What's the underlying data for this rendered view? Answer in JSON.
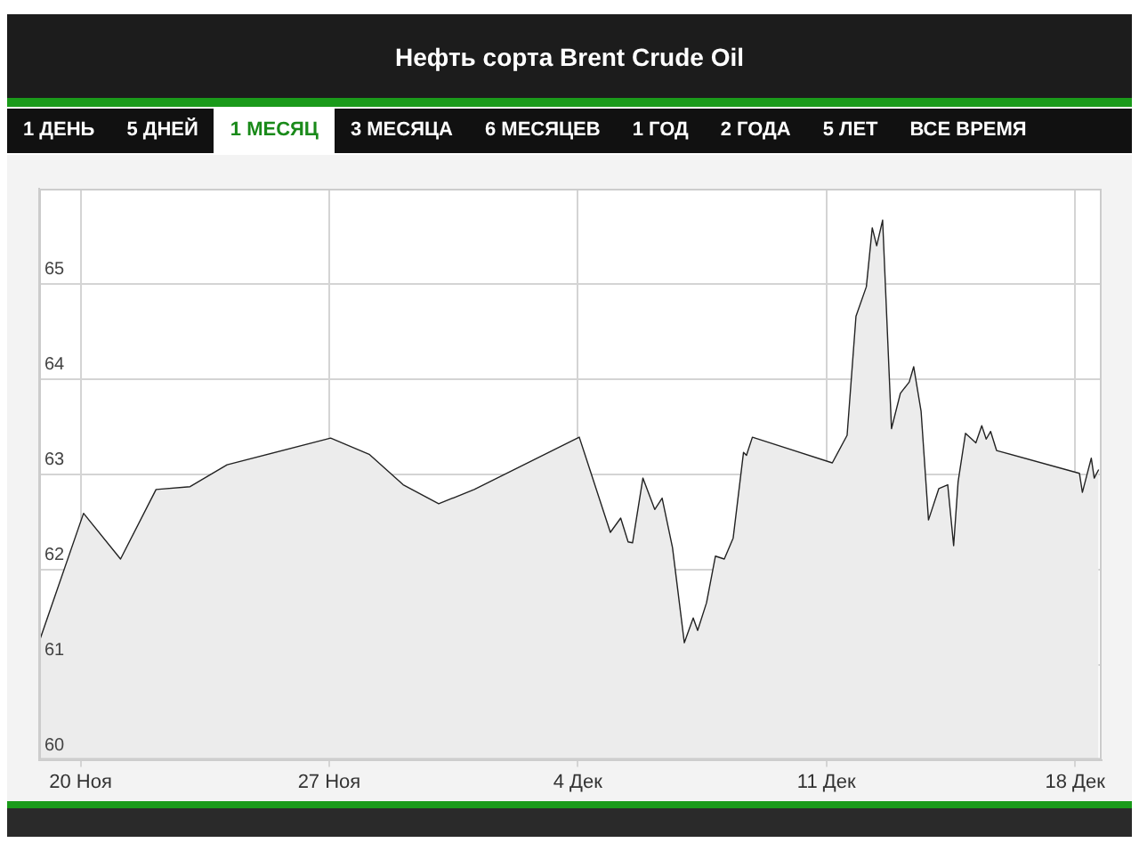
{
  "chart_data": {
    "type": "area",
    "title": "Нефть сорта Brent Crude Oil",
    "annotations": [
      "1 ДЕНЬ",
      "5 ДНЕЙ",
      "1 МЕСЯЦ",
      "3 МЕСЯЦА",
      "6 МЕСЯЦЕВ",
      "1 ГОД",
      "2 ГОДА",
      "5 ЛЕТ",
      "ВСЕ ВРЕМЯ"
    ],
    "x": [
      "--11-18T20:00",
      "--11-20T02:00",
      "--11-21T03:00",
      "--11-22T03:00",
      "--11-23T02:00",
      "--11-24T03:00",
      "--11-27T01:00",
      "--11-28T03:00",
      "--11-29T02:00",
      "--11-30T02:00",
      "--12-01T02:00",
      "--12-04T01:00",
      "--12-04T22:00",
      "--12-05T05:00",
      "--12-05T10:00",
      "--12-05T13:00",
      "--12-05T20:00",
      "--12-06T04:00",
      "--12-06T09:00",
      "--12-06T16:00",
      "--12-07T00:00",
      "--12-07T06:00",
      "--12-07T09:00",
      "--12-07T15:00",
      "--12-07T21:00",
      "--12-08T03:00",
      "--12-08T09:00",
      "--12-08T16:00",
      "--12-08T18:00",
      "--12-08T22:00",
      "--12-11T04:00",
      "--12-11T14:00",
      "--12-11T20:00",
      "--12-12T03:00",
      "--12-12T07:00",
      "--12-12T10:00",
      "--12-12T14:00",
      "--12-12T20:00",
      "--12-13T02:00",
      "--12-13T08:00",
      "--12-13T11:00",
      "--12-13T16:00",
      "--12-13T21:00",
      "--12-14T04:00",
      "--12-14T10:00",
      "--12-14T14:00",
      "--12-14T17:00",
      "--12-14T22:00",
      "--12-15T05:00",
      "--12-15T09:00",
      "--12-15T12:00",
      "--12-15T15:00",
      "--12-15T19:00",
      "--12-18T03:00",
      "--12-18T05:00",
      "--12-18T11:00",
      "--12-18T13:00",
      "--12-18T16:00"
    ],
    "series": [
      {
        "color": "#222222",
        "values": [
          61.24,
          62.59,
          62.11,
          62.84,
          62.87,
          63.1,
          63.38,
          63.21,
          62.89,
          62.69,
          62.84,
          63.39,
          62.39,
          62.54,
          62.29,
          62.28,
          62.96,
          62.63,
          62.75,
          62.23,
          61.23,
          61.49,
          61.36,
          61.65,
          62.14,
          62.11,
          62.33,
          63.23,
          63.2,
          63.39,
          63.12,
          63.41,
          64.66,
          64.97,
          65.59,
          65.4,
          65.67,
          63.48,
          63.85,
          63.97,
          64.13,
          63.66,
          62.52,
          62.85,
          62.89,
          62.25,
          62.92,
          63.43,
          63.33,
          63.51,
          63.37,
          63.45,
          63.25,
          63.01,
          62.81,
          63.17,
          62.96,
          63.05
        ]
      }
    ],
    "xlim": [
      "--11-18T20:00",
      "--12-18T18:00"
    ],
    "xticks": [
      {
        "value": "--11-20",
        "label": "20 Ноя"
      },
      {
        "value": "--11-27",
        "label": "27 Ноя"
      },
      {
        "value": "--12-04",
        "label": "4 Дек"
      },
      {
        "value": "--12-11",
        "label": "11 Дек"
      },
      {
        "value": "--12-18",
        "label": "18 Дек"
      }
    ],
    "ylim": [
      60,
      66
    ],
    "yticks": [
      60,
      61,
      62,
      63,
      64,
      65
    ],
    "grid": true,
    "marker": "none"
  }
}
